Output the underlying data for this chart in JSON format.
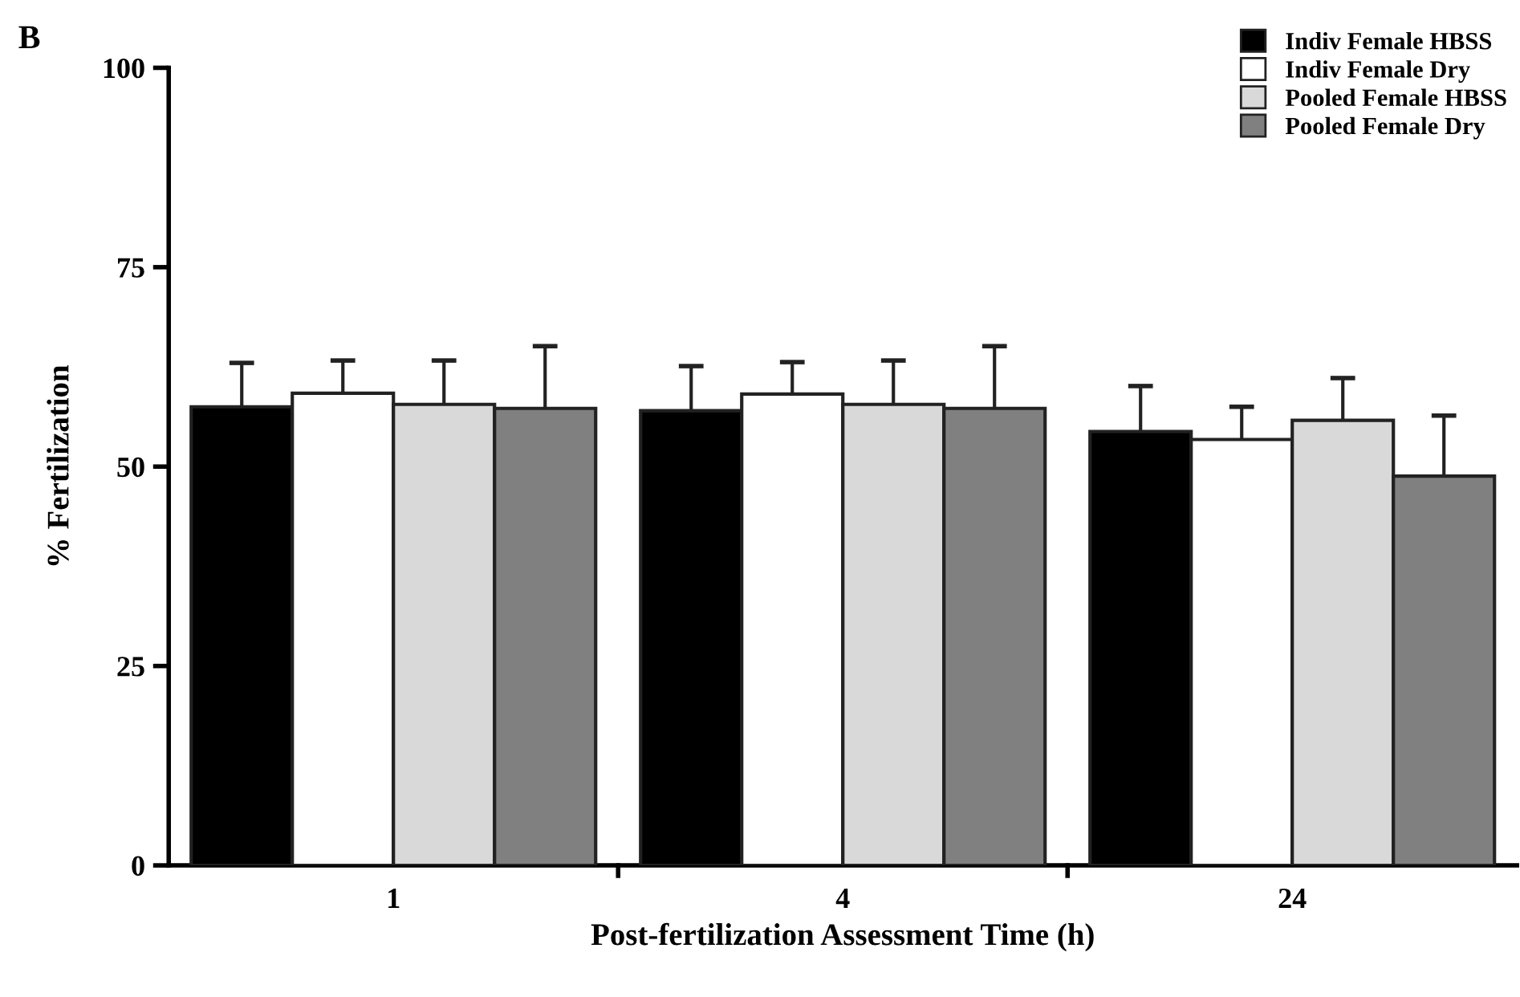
{
  "chart_data": {
    "type": "bar",
    "xlabel": "Post-fertilization Assessment Time (h)",
    "ylabel": "% Fertilization",
    "annotations": [
      "B"
    ],
    "categories": [
      "1",
      "4",
      "24"
    ],
    "series": [
      {
        "name": "Indiv Female HBSS",
        "color": "#000000",
        "values": [
          57.5,
          57.0,
          54.4
        ],
        "errors": [
          [
            57.5,
            63.0
          ],
          [
            57.0,
            62.6
          ],
          [
            54.4,
            60.1
          ]
        ]
      },
      {
        "name": "Indiv Female Dry",
        "color": "#ffffff",
        "values": [
          59.2,
          59.1,
          53.4
        ],
        "errors": [
          [
            59.2,
            63.3
          ],
          [
            59.1,
            63.1
          ],
          [
            53.4,
            57.5
          ]
        ]
      },
      {
        "name": "Pooled Female HBSS",
        "color": "#d9d9d9",
        "values": [
          57.8,
          57.8,
          55.8
        ],
        "errors": [
          [
            57.8,
            63.3
          ],
          [
            57.8,
            63.3
          ],
          [
            55.8,
            61.1
          ]
        ]
      },
      {
        "name": "Pooled Female Dry",
        "color": "#808080",
        "values": [
          57.3,
          57.3,
          48.8
        ],
        "errors": [
          [
            57.3,
            65.1
          ],
          [
            57.3,
            65.1
          ],
          [
            48.8,
            56.4
          ]
        ]
      }
    ],
    "ylim": [
      0,
      100
    ],
    "yticks": [
      0,
      25,
      50,
      75,
      100
    ],
    "grid": false,
    "legend": "top right"
  }
}
